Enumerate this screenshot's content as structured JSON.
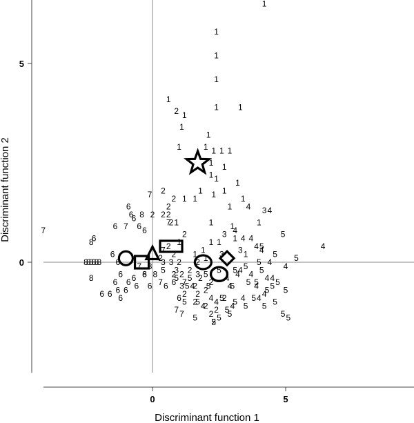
{
  "chart_data": {
    "type": "scatter",
    "title": "",
    "xlabel": "Discriminant function 1",
    "ylabel": "Discriminant function 2",
    "xlim": [
      -4,
      10
    ],
    "ylim": [
      -4,
      6.5
    ],
    "xticks": [
      0,
      5
    ],
    "yticks": [
      0,
      5
    ],
    "reference_lines": {
      "x": 0,
      "y": 0
    },
    "grid": false,
    "legend": "none",
    "point_markers": "group number printed as the plotting symbol",
    "series": [
      {
        "label": "1",
        "points": [
          [
            4.2,
            6.5
          ],
          [
            2.4,
            5.8
          ],
          [
            2.4,
            5.2
          ],
          [
            2.4,
            4.6
          ],
          [
            0.6,
            4.1
          ],
          [
            1.2,
            3.7
          ],
          [
            2.4,
            3.9
          ],
          [
            3.3,
            3.9
          ],
          [
            1.1,
            3.4
          ],
          [
            2.1,
            3.2
          ],
          [
            1.0,
            2.9
          ],
          [
            2.0,
            2.9
          ],
          [
            2.3,
            2.8
          ],
          [
            2.6,
            2.8
          ],
          [
            2.9,
            2.8
          ],
          [
            2.2,
            2.5
          ],
          [
            2.7,
            2.4
          ],
          [
            2.2,
            2.2
          ],
          [
            2.4,
            2.1
          ],
          [
            3.2,
            2.0
          ],
          [
            1.8,
            1.8
          ],
          [
            2.3,
            1.7
          ],
          [
            2.7,
            1.8
          ],
          [
            3.4,
            1.6
          ],
          [
            1.2,
            1.6
          ],
          [
            1.6,
            1.6
          ],
          [
            2.9,
            1.4
          ],
          [
            0.9,
            1.0
          ],
          [
            2.2,
            1.0
          ],
          [
            3.0,
            0.9
          ],
          [
            1.0,
            0.5
          ],
          [
            2.2,
            0.5
          ],
          [
            2.5,
            0.5
          ],
          [
            1.9,
            0.3
          ],
          [
            1.6,
            0.2
          ],
          [
            3.1,
            0.6
          ],
          [
            4.0,
            1.0
          ],
          [
            3.5,
            0.2
          ],
          [
            2.0,
            0.1
          ]
        ]
      },
      {
        "label": "2",
        "points": [
          [
            0.9,
            3.8
          ],
          [
            0.4,
            1.8
          ],
          [
            0.8,
            1.6
          ],
          [
            0.6,
            1.4
          ],
          [
            0.0,
            1.2
          ],
          [
            0.4,
            1.2
          ],
          [
            0.6,
            1.2
          ],
          [
            0.7,
            1.0
          ],
          [
            1.2,
            0.7
          ],
          [
            0.6,
            0.4
          ],
          [
            0.8,
            0.2
          ],
          [
            0.3,
            0.1
          ],
          [
            1.0,
            0.0
          ],
          [
            1.7,
            0.0
          ],
          [
            1.4,
            -0.2
          ],
          [
            1.1,
            -0.3
          ],
          [
            1.8,
            -0.4
          ],
          [
            2.2,
            -0.5
          ],
          [
            1.6,
            -0.6
          ],
          [
            2.0,
            -0.7
          ],
          [
            1.7,
            -0.8
          ],
          [
            2.7,
            -0.9
          ],
          [
            1.6,
            -1.0
          ],
          [
            2.0,
            -1.1
          ],
          [
            2.4,
            -1.2
          ],
          [
            2.2,
            -1.3
          ],
          [
            2.3,
            -1.5
          ],
          [
            0.8,
            -0.3
          ],
          [
            1.2,
            -0.8
          ]
        ]
      },
      {
        "label": "3",
        "points": [
          [
            4.2,
            1.3
          ],
          [
            2.7,
            0.7
          ],
          [
            0.4,
            0.0
          ],
          [
            0.7,
            0.0
          ],
          [
            0.9,
            -0.2
          ],
          [
            1.1,
            -0.6
          ],
          [
            1.7,
            -0.3
          ],
          [
            2.6,
            0.2
          ],
          [
            3.3,
            0.3
          ]
        ]
      },
      {
        "label": "4",
        "points": [
          [
            4.4,
            1.3
          ],
          [
            6.4,
            0.4
          ],
          [
            3.6,
            1.4
          ],
          [
            3.1,
            0.8
          ],
          [
            3.7,
            0.6
          ],
          [
            3.9,
            0.4
          ],
          [
            3.4,
            0.6
          ],
          [
            4.1,
            0.3
          ],
          [
            4.4,
            0.0
          ],
          [
            3.2,
            -0.3
          ],
          [
            3.7,
            -0.3
          ],
          [
            4.3,
            -0.4
          ],
          [
            4.5,
            -0.4
          ],
          [
            5.0,
            -0.1
          ],
          [
            3.9,
            -0.6
          ],
          [
            4.2,
            -0.8
          ],
          [
            4.0,
            -0.9
          ],
          [
            2.9,
            -0.6
          ],
          [
            3.4,
            -0.9
          ],
          [
            1.9,
            -1.1
          ],
          [
            2.4,
            -1.0
          ],
          [
            3.0,
            -1.1
          ],
          [
            1.5,
            -0.6
          ],
          [
            2.2,
            -0.9
          ],
          [
            3.3,
            -0.2
          ],
          [
            2.8,
            -0.4
          ]
        ]
      },
      {
        "label": "5",
        "points": [
          [
            4.9,
            0.7
          ],
          [
            5.4,
            0.1
          ],
          [
            4.1,
            0.4
          ],
          [
            4.6,
            0.2
          ],
          [
            4.0,
            0.0
          ],
          [
            3.5,
            -0.1
          ],
          [
            4.1,
            -0.2
          ],
          [
            3.6,
            -0.5
          ],
          [
            3.9,
            -0.5
          ],
          [
            4.3,
            -0.7
          ],
          [
            4.5,
            -0.6
          ],
          [
            5.0,
            -0.7
          ],
          [
            3.8,
            -0.9
          ],
          [
            4.2,
            -1.1
          ],
          [
            4.6,
            -1.0
          ],
          [
            4.9,
            -1.3
          ],
          [
            5.1,
            -1.4
          ],
          [
            2.5,
            -0.2
          ],
          [
            3.0,
            -0.6
          ],
          [
            2.6,
            -0.9
          ],
          [
            3.1,
            -1.0
          ],
          [
            3.5,
            -1.1
          ],
          [
            2.9,
            -1.3
          ],
          [
            1.6,
            -1.4
          ],
          [
            2.3,
            -1.5
          ],
          [
            2.8,
            -1.2
          ],
          [
            3.1,
            -0.2
          ],
          [
            1.4,
            -0.4
          ],
          [
            1.2,
            -1.0
          ],
          [
            0.9,
            -0.4
          ],
          [
            0.4,
            -0.2
          ],
          [
            1.3,
            -0.6
          ],
          [
            2.0,
            -0.3
          ],
          [
            2.1,
            -0.6
          ],
          [
            4.7,
            -0.5
          ],
          [
            2.5,
            -1.4
          ],
          [
            1.7,
            -1.0
          ]
        ]
      },
      {
        "label": "6",
        "points": [
          [
            -0.9,
            1.4
          ],
          [
            -0.8,
            1.2
          ],
          [
            -0.7,
            1.1
          ],
          [
            -0.5,
            0.9
          ],
          [
            -0.3,
            0.8
          ],
          [
            -1.4,
            0.9
          ],
          [
            -2.2,
            0.6
          ],
          [
            -1.5,
            0.2
          ],
          [
            -1.3,
            0.0
          ],
          [
            -1.2,
            -0.3
          ],
          [
            -1.4,
            -0.5
          ],
          [
            -1.3,
            -0.7
          ],
          [
            -1.6,
            -0.8
          ],
          [
            -1.0,
            -0.7
          ],
          [
            -0.9,
            -0.5
          ],
          [
            -0.7,
            -0.4
          ],
          [
            -0.6,
            -0.6
          ],
          [
            -0.3,
            -0.3
          ],
          [
            -0.1,
            -0.6
          ],
          [
            -1.9,
            -0.8
          ],
          [
            -1.2,
            -0.9
          ],
          [
            0.5,
            -0.6
          ],
          [
            1.0,
            -0.9
          ],
          [
            0.8,
            -0.5
          ]
        ]
      },
      {
        "label": "7",
        "points": [
          [
            -4.1,
            0.8
          ],
          [
            -1.0,
            0.9
          ],
          [
            -0.1,
            1.7
          ],
          [
            0.6,
            1.0
          ],
          [
            -0.5,
            -0.1
          ],
          [
            1.1,
            -1.3
          ],
          [
            0.9,
            -1.2
          ],
          [
            1.2,
            -0.5
          ],
          [
            0.3,
            -0.5
          ],
          [
            0.4,
            0.3
          ]
        ]
      },
      {
        "label": "8",
        "points": [
          [
            -2.3,
            0.5
          ],
          [
            -0.4,
            1.2
          ],
          [
            -2.5,
            0.0
          ],
          [
            -2.4,
            0.0
          ],
          [
            -2.3,
            0.0
          ],
          [
            -2.2,
            0.0
          ],
          [
            -2.1,
            0.0
          ],
          [
            -2.0,
            0.0
          ],
          [
            -2.3,
            -0.4
          ],
          [
            -0.3,
            -0.3
          ],
          [
            0.1,
            -0.3
          ],
          [
            -0.1,
            -0.1
          ]
        ]
      }
    ],
    "group_centroids": [
      {
        "group": "1",
        "marker": "star",
        "x": 1.7,
        "y": 2.5
      },
      {
        "group": "2",
        "marker": "ellipse",
        "x": 1.9,
        "y": 0.0
      },
      {
        "group": "3",
        "marker": "diamond",
        "x": 2.8,
        "y": 0.1
      },
      {
        "group": "4",
        "marker": "ellipse",
        "x": 2.5,
        "y": -0.3
      },
      {
        "group": "5",
        "marker": "ellipse",
        "x": 2.5,
        "y": -0.3
      },
      {
        "group": "6",
        "marker": "circle",
        "x": -1.0,
        "y": 0.1
      },
      {
        "group": "7",
        "marker": "rectangle",
        "x": 0.7,
        "y": 0.4
      },
      {
        "group": "8",
        "marker": "square",
        "x": -0.4,
        "y": 0.0
      },
      {
        "group": "8",
        "marker": "triangle",
        "x": 0.0,
        "y": 0.2
      }
    ]
  }
}
